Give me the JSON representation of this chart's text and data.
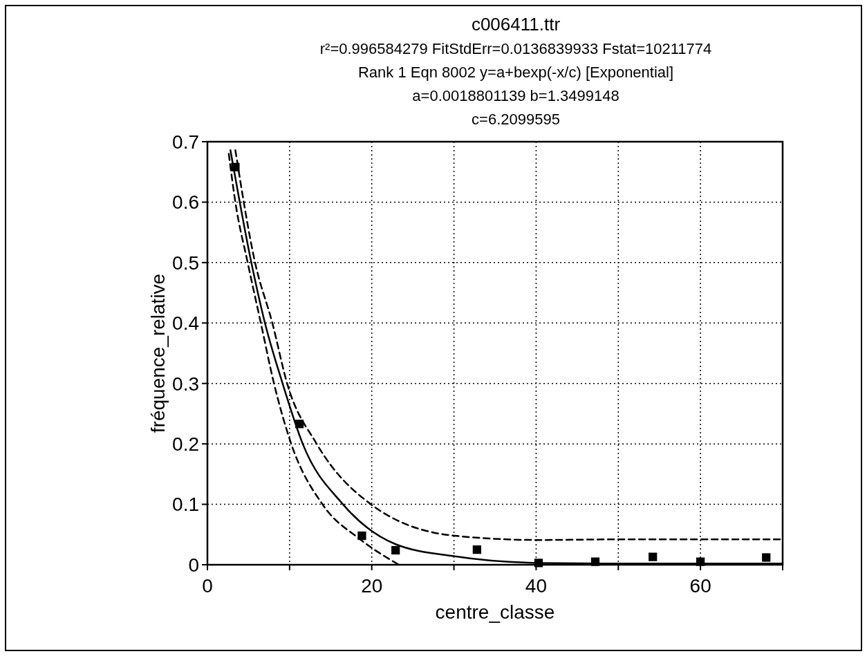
{
  "chart_data": {
    "type": "scatter",
    "title": "c006411.ttr",
    "subtitle": "r²=0.996584279  FitStdErr=0.0136839933  Fstat=10211774",
    "annotations": [
      "Rank 1  Eqn 8002  y=a+bexp(-x/c) [Exponential]",
      "a=0.0018801139 b=1.3499148",
      "c=6.2099595"
    ],
    "xlabel": "centre_classe",
    "ylabel": "fréquence_relative",
    "xlim": [
      0,
      70
    ],
    "xticks": [
      0,
      {
        "value": 10,
        "label": null
      },
      20,
      {
        "value": 30,
        "label": null
      },
      40,
      {
        "value": 50,
        "label": null
      },
      60,
      {
        "value": 70,
        "label": null
      }
    ],
    "ylim": [
      0,
      0.7
    ],
    "yticks": [
      0,
      0.1,
      0.2,
      0.3,
      0.4,
      0.5,
      0.6,
      0.7
    ],
    "grid": true,
    "series": [
      {
        "marker": "square",
        "color": "#000000",
        "x": [
          3.4,
          11.2,
          18.8,
          22.9,
          32.8,
          40.3,
          47.2,
          54.2,
          60.0,
          68.0
        ],
        "values": [
          0.658,
          0.233,
          0.048,
          0.024,
          0.025,
          0.003,
          0.005,
          0.013,
          0.005,
          0.012
        ]
      },
      {
        "type": "line",
        "marker": "none",
        "line_style": "solid",
        "color": "#000000",
        "x": [
          2.8,
          5.3,
          7.0,
          9.1,
          11.6,
          16.5,
          22.9,
          30.1,
          40.3,
          50,
          60,
          70
        ],
        "values": [
          0.686,
          0.503,
          0.4,
          0.302,
          0.2,
          0.1,
          0.034,
          0.014,
          0.003,
          0.002,
          0.002,
          0.002
        ]
      },
      {
        "type": "line",
        "marker": "none",
        "line_style": "dashed",
        "color": "#000000",
        "x": [
          3.4,
          5.8,
          7.9,
          9.7,
          13.3,
          19.9,
          30.1,
          40.3,
          50,
          60,
          70
        ],
        "values": [
          0.686,
          0.5,
          0.4,
          0.3,
          0.2,
          0.1,
          0.048,
          0.041,
          0.042,
          0.042,
          0.042
        ]
      },
      {
        "type": "line",
        "marker": "none",
        "line_style": "dashed",
        "color": "#000000",
        "x": [
          2.6,
          3.4,
          4.9,
          6.5,
          8.1,
          10.2,
          14.0,
          18.6,
          23.3
        ],
        "values": [
          0.68,
          0.6,
          0.5,
          0.4,
          0.3,
          0.2,
          0.1,
          0.042,
          0.0
        ]
      }
    ]
  }
}
